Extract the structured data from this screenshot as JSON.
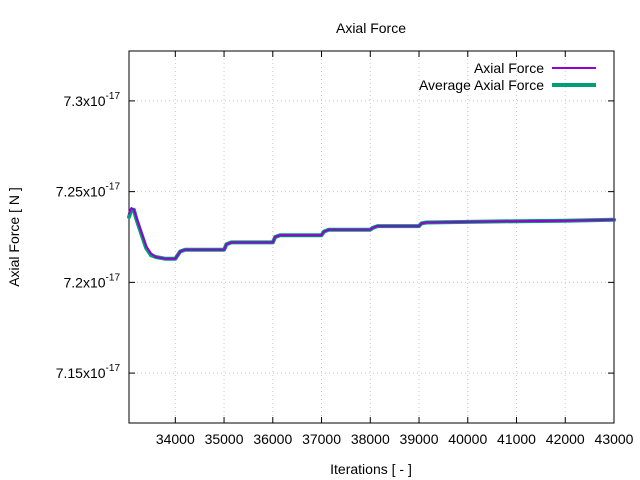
{
  "chart_data": {
    "type": "line",
    "title": "Axial Force",
    "xlabel": "Iterations [ - ]",
    "ylabel": "Axial Force [ N ]",
    "xlim": [
      33050,
      43000
    ],
    "ylim": [
      7.1225e-17,
      7.3275e-17
    ],
    "x_ticks": [
      34000,
      35000,
      36000,
      37000,
      38000,
      39000,
      40000,
      41000,
      42000,
      43000
    ],
    "x_tick_labels": [
      "34000",
      "35000",
      "36000",
      "37000",
      "38000",
      "39000",
      "40000",
      "41000",
      "42000",
      "43000"
    ],
    "y_ticks": [
      {
        "value": 7.15e-17,
        "mantissa": "7.15x10",
        "exponent": "-17"
      },
      {
        "value": 7.2e-17,
        "mantissa": "7.2x10",
        "exponent": "-17"
      },
      {
        "value": 7.25e-17,
        "mantissa": "7.25x10",
        "exponent": "-17"
      },
      {
        "value": 7.3e-17,
        "mantissa": "7.3x10",
        "exponent": "-17"
      }
    ],
    "grid": true,
    "legend_position": "top-right",
    "series": [
      {
        "name": "Axial Force",
        "color": "#9400d3",
        "points": [
          [
            33050,
            7.238e-17
          ],
          [
            33100,
            7.241e-17
          ],
          [
            33150,
            7.24e-17
          ],
          [
            33200,
            7.236e-17
          ],
          [
            33300,
            7.228e-17
          ],
          [
            33400,
            7.22e-17
          ],
          [
            33500,
            7.216e-17
          ],
          [
            33600,
            7.214e-17
          ],
          [
            33800,
            7.213e-17
          ],
          [
            34000,
            7.213e-17
          ],
          [
            34050,
            7.215e-17
          ],
          [
            34100,
            7.217e-17
          ],
          [
            34200,
            7.218e-17
          ],
          [
            35000,
            7.218e-17
          ],
          [
            35050,
            7.221e-17
          ],
          [
            35150,
            7.222e-17
          ],
          [
            36000,
            7.222e-17
          ],
          [
            36050,
            7.225e-17
          ],
          [
            36150,
            7.226e-17
          ],
          [
            37000,
            7.226e-17
          ],
          [
            37050,
            7.228e-17
          ],
          [
            37150,
            7.229e-17
          ],
          [
            38000,
            7.229e-17
          ],
          [
            38050,
            7.23e-17
          ],
          [
            38150,
            7.231e-17
          ],
          [
            39000,
            7.231e-17
          ],
          [
            39050,
            7.2325e-17
          ],
          [
            39150,
            7.233e-17
          ],
          [
            40000,
            7.2333e-17
          ],
          [
            41000,
            7.2337e-17
          ],
          [
            42000,
            7.234e-17
          ],
          [
            43000,
            7.2345e-17
          ]
        ]
      },
      {
        "name": "Average Axial Force",
        "color": "#009e73",
        "points": [
          [
            33050,
            7.236e-17
          ],
          [
            33100,
            7.24e-17
          ],
          [
            33150,
            7.24e-17
          ],
          [
            33200,
            7.235e-17
          ],
          [
            33300,
            7.227e-17
          ],
          [
            33400,
            7.219e-17
          ],
          [
            33500,
            7.215e-17
          ],
          [
            33600,
            7.214e-17
          ],
          [
            33800,
            7.213e-17
          ],
          [
            34000,
            7.213e-17
          ],
          [
            34050,
            7.215e-17
          ],
          [
            34100,
            7.217e-17
          ],
          [
            34200,
            7.218e-17
          ],
          [
            35000,
            7.218e-17
          ],
          [
            35050,
            7.221e-17
          ],
          [
            35150,
            7.222e-17
          ],
          [
            36000,
            7.222e-17
          ],
          [
            36050,
            7.225e-17
          ],
          [
            36150,
            7.226e-17
          ],
          [
            37000,
            7.226e-17
          ],
          [
            37050,
            7.228e-17
          ],
          [
            37150,
            7.229e-17
          ],
          [
            38000,
            7.229e-17
          ],
          [
            38050,
            7.23e-17
          ],
          [
            38150,
            7.231e-17
          ],
          [
            39000,
            7.231e-17
          ],
          [
            39050,
            7.2325e-17
          ],
          [
            39150,
            7.233e-17
          ],
          [
            40000,
            7.2333e-17
          ],
          [
            41000,
            7.2337e-17
          ],
          [
            42000,
            7.234e-17
          ],
          [
            43000,
            7.2345e-17
          ]
        ]
      }
    ]
  }
}
